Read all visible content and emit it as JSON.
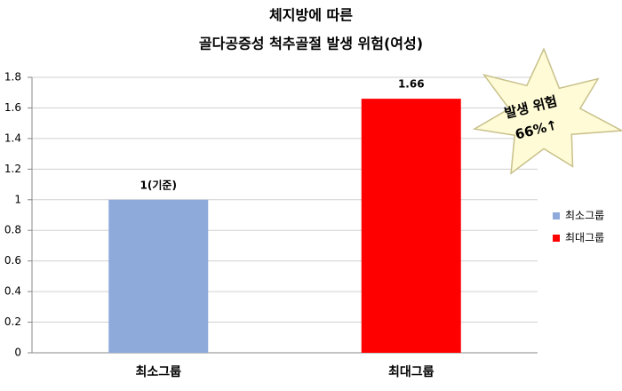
{
  "chart_data": {
    "type": "bar",
    "title": [
      "체지방에 따른",
      "골다공증성 척추골절 발생 위험(여성)"
    ],
    "categories": [
      "최소그룹",
      "최대그룹"
    ],
    "series": [
      {
        "name": "최소그룹",
        "color": "#8eaadb",
        "values": [
          1,
          null
        ],
        "value_labels": [
          "1(기준)",
          null
        ]
      },
      {
        "name": "최대그룹",
        "color": "#ff0000",
        "values": [
          null,
          1.66
        ]
      }
    ],
    "ylim": [
      0,
      1.8
    ],
    "yticks": [
      0,
      0.2,
      0.4,
      0.6,
      0.8,
      1,
      1.2,
      1.4,
      1.6,
      1.8
    ],
    "grid": true,
    "legend": "right",
    "annotation": [
      "발생 위험",
      "66%↑"
    ]
  }
}
